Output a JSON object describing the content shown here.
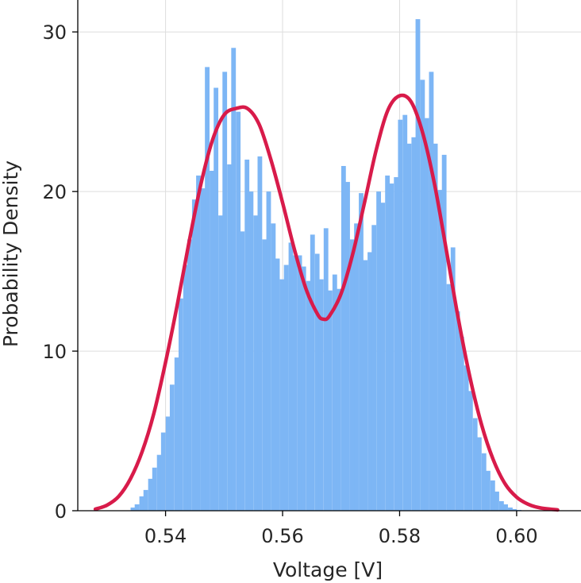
{
  "chart_data": {
    "type": "bar",
    "title": "",
    "xlabel": "Voltage [V]",
    "ylabel": "Probability Density",
    "xlim": [
      0.525,
      0.611
    ],
    "ylim": [
      0,
      32
    ],
    "xticks": [
      0.54,
      0.56,
      0.58,
      0.6
    ],
    "xtick_labels": [
      "0.54",
      "0.56",
      "0.58",
      "0.60"
    ],
    "yticks": [
      0,
      10,
      20,
      30
    ],
    "ytick_labels": [
      "0",
      "10",
      "20",
      "30"
    ],
    "grid": true,
    "legend": "none",
    "bin_width": 0.00075,
    "series": [
      {
        "type": "histogram",
        "color": "#7db6f5",
        "bins_x": [
          0.5344,
          0.5351,
          0.5359,
          0.5366,
          0.5374,
          0.5381,
          0.5389,
          0.5396,
          0.5404,
          0.5411,
          0.5419,
          0.5426,
          0.5434,
          0.5441,
          0.5449,
          0.5456,
          0.5464,
          0.5471,
          0.5479,
          0.5486,
          0.5494,
          0.5501,
          0.5509,
          0.5516,
          0.5524,
          0.5531,
          0.5539,
          0.5546,
          0.5554,
          0.5561,
          0.5569,
          0.5576,
          0.5584,
          0.5591,
          0.5599,
          0.5606,
          0.5614,
          0.5621,
          0.5629,
          0.5636,
          0.5644,
          0.5651,
          0.5659,
          0.5666,
          0.5674,
          0.5681,
          0.5689,
          0.5696,
          0.5704,
          0.5711,
          0.5719,
          0.5726,
          0.5734,
          0.5741,
          0.5749,
          0.5756,
          0.5764,
          0.5771,
          0.5779,
          0.5786,
          0.5794,
          0.5801,
          0.5809,
          0.5816,
          0.5824,
          0.5831,
          0.5839,
          0.5846,
          0.5854,
          0.5861,
          0.5869,
          0.5876,
          0.5884,
          0.5891,
          0.5899,
          0.5906,
          0.5914,
          0.5921,
          0.5929,
          0.5936,
          0.5944,
          0.5951,
          0.5959,
          0.5966,
          0.5974,
          0.5981,
          0.5989,
          0.5996,
          0.6004
        ],
        "values": [
          0.2,
          0.4,
          0.9,
          1.3,
          2.0,
          2.7,
          3.5,
          4.9,
          5.9,
          7.9,
          9.6,
          13.3,
          15.4,
          17.0,
          19.5,
          21.0,
          20.2,
          27.8,
          21.3,
          26.5,
          18.5,
          27.5,
          21.7,
          29.0,
          25.0,
          17.5,
          22.0,
          20.0,
          18.5,
          22.2,
          17.0,
          20.0,
          18.0,
          15.8,
          14.5,
          15.4,
          16.8,
          16.0,
          16.0,
          15.3,
          14.4,
          17.3,
          16.1,
          14.5,
          17.7,
          13.8,
          14.8,
          13.9,
          21.6,
          20.6,
          17.0,
          18.0,
          19.9,
          15.7,
          16.2,
          17.9,
          20.0,
          19.3,
          21.0,
          20.5,
          20.9,
          24.5,
          24.8,
          23.0,
          23.4,
          30.8,
          27.0,
          24.6,
          27.5,
          23.0,
          20.1,
          22.3,
          14.2,
          16.5,
          12.5,
          10.9,
          9.1,
          7.5,
          5.8,
          4.6,
          3.6,
          2.5,
          1.9,
          1.2,
          0.6,
          0.4,
          0.2,
          0.1,
          0.05
        ]
      },
      {
        "type": "line",
        "color": "#d81b4a",
        "x": [
          0.528,
          0.53,
          0.532,
          0.534,
          0.536,
          0.538,
          0.54,
          0.542,
          0.544,
          0.546,
          0.548,
          0.55,
          0.552,
          0.554,
          0.556,
          0.558,
          0.56,
          0.562,
          0.564,
          0.566,
          0.567,
          0.568,
          0.57,
          0.572,
          0.574,
          0.576,
          0.578,
          0.58,
          0.582,
          0.584,
          0.586,
          0.588,
          0.59,
          0.592,
          0.594,
          0.596,
          0.598,
          0.6,
          0.602,
          0.604,
          0.607
        ],
        "values": [
          0.1,
          0.35,
          0.9,
          2.0,
          3.7,
          6.1,
          9.3,
          12.9,
          16.8,
          20.4,
          23.2,
          24.8,
          25.2,
          25.2,
          24.2,
          22.0,
          19.3,
          16.4,
          13.9,
          12.3,
          12.0,
          12.2,
          13.6,
          16.1,
          19.3,
          22.6,
          25.1,
          26.0,
          25.6,
          23.6,
          20.4,
          16.3,
          12.1,
          8.4,
          5.4,
          3.2,
          1.7,
          0.85,
          0.4,
          0.18,
          0.05
        ]
      }
    ]
  }
}
